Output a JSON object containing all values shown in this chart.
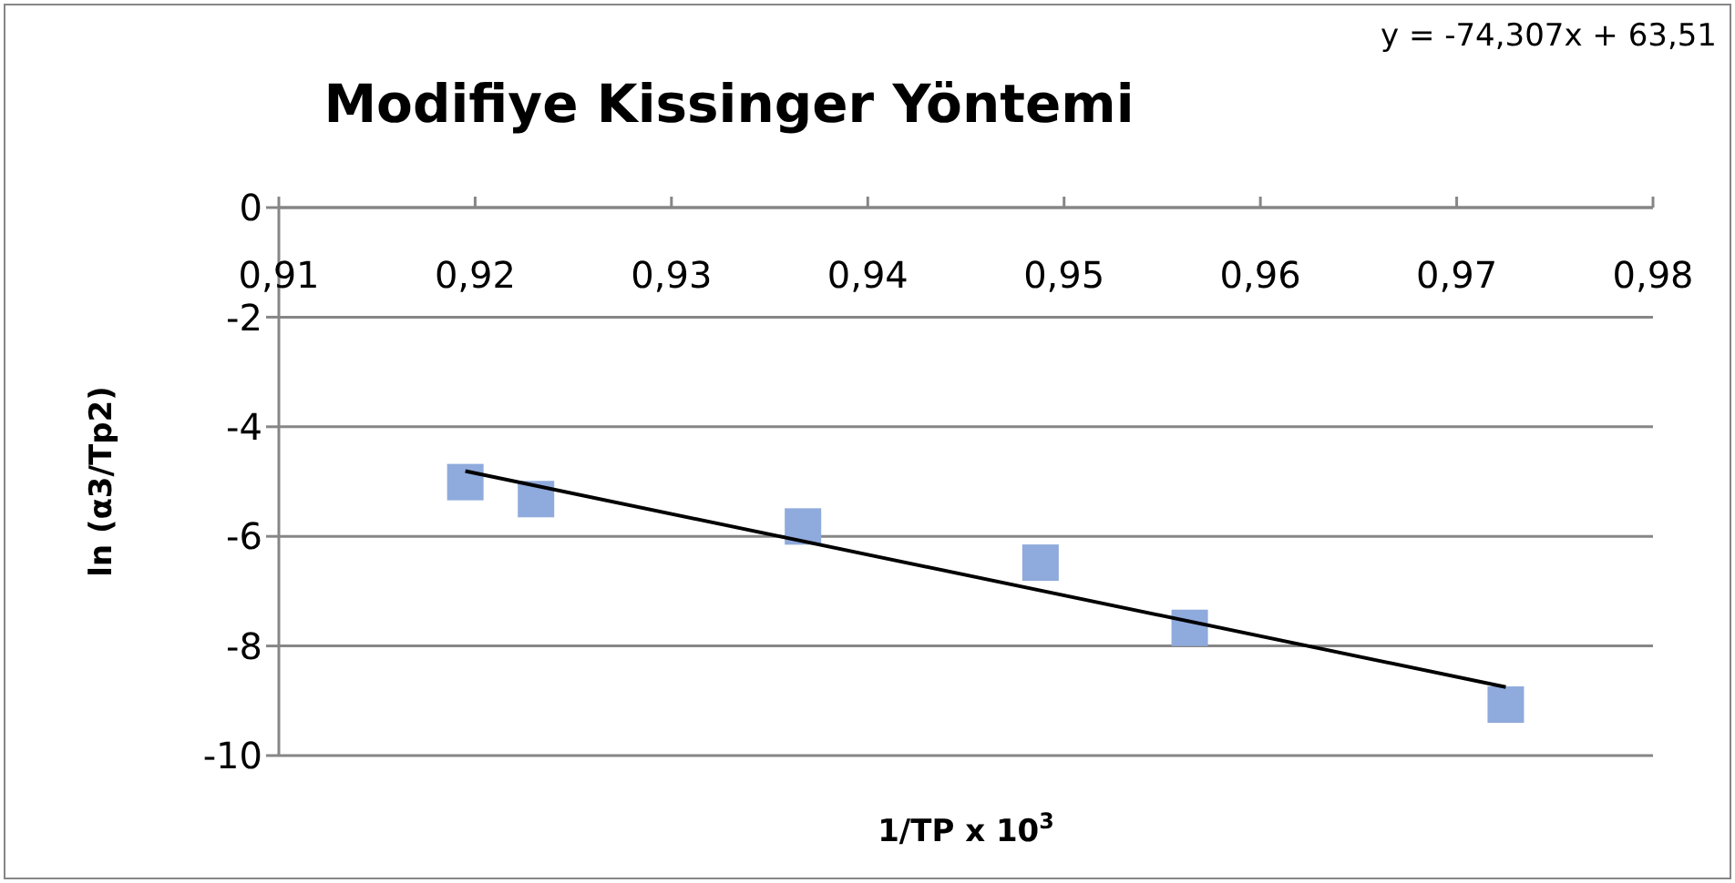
{
  "chart_data": {
    "type": "scatter",
    "title": "Modifiye Kissinger Yöntemi",
    "xlabel": "1/TP x 10$^{3}$",
    "ylabel": "ln (α3/Tp2)",
    "annotations": [
      "y = -74,307x + 63,51"
    ],
    "x": [
      0.9195,
      0.9231,
      0.9367,
      0.9488,
      0.9564,
      0.9725
    ],
    "series": [
      {
        "color": "#8faadc",
        "values": [
          -5.01,
          -5.32,
          -5.82,
          -6.48,
          -7.67,
          -9.07
        ],
        "marker": "square"
      },
      {
        "type": "line",
        "color": "#000000",
        "x": [
          0.9195,
          0.9725
        ],
        "values": [
          -4.81,
          -8.75
        ],
        "marker": "none"
      }
    ],
    "xlim": [
      0.91,
      0.98
    ],
    "xticks": [
      {
        "value": 0.91,
        "label": "0,91"
      },
      {
        "value": 0.92,
        "label": "0,92"
      },
      {
        "value": 0.93,
        "label": "0,93"
      },
      {
        "value": 0.94,
        "label": "0,94"
      },
      {
        "value": 0.95,
        "label": "0,95"
      },
      {
        "value": 0.96,
        "label": "0,96"
      },
      {
        "value": 0.97,
        "label": "0,97"
      },
      {
        "value": 0.98,
        "label": "0,98"
      }
    ],
    "ylim": [
      -10,
      0
    ],
    "yticks": [
      -10,
      -8,
      -6,
      -4,
      -2,
      0
    ],
    "grid": "y",
    "legend": false
  }
}
